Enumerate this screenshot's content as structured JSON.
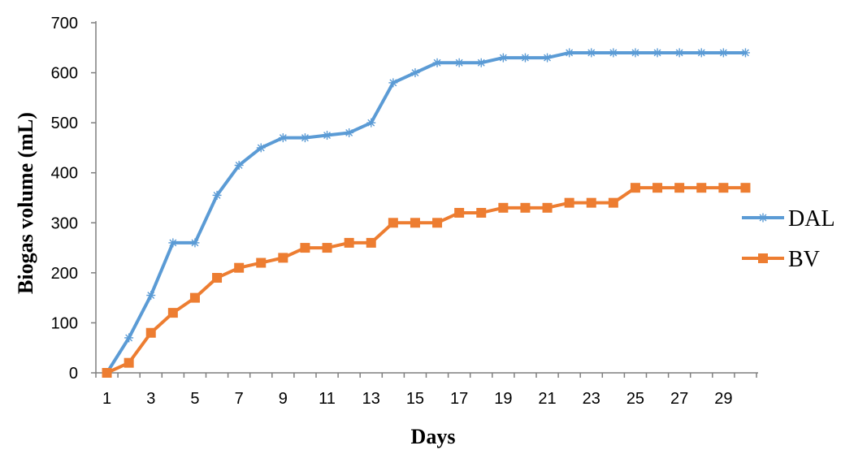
{
  "chart_data": {
    "type": "line",
    "title": "",
    "xlabel": "Days",
    "ylabel": "Biogas volume (mL)",
    "ylim": [
      0,
      700
    ],
    "yticks": [
      "0",
      "100",
      "200",
      "300",
      "400",
      "500",
      "600",
      "700"
    ],
    "xticks": [
      "1",
      "3",
      "5",
      "7",
      "9",
      "11",
      "13",
      "15",
      "17",
      "19",
      "21",
      "23",
      "25",
      "27",
      "29"
    ],
    "grid": false,
    "legend_position": "right",
    "x": [
      1,
      2,
      3,
      4,
      5,
      6,
      7,
      8,
      9,
      10,
      11,
      12,
      13,
      14,
      15,
      16,
      17,
      18,
      19,
      20,
      21,
      22,
      23,
      24,
      25,
      26,
      27,
      28,
      29,
      30
    ],
    "series": [
      {
        "name": "DAL",
        "color": "#5B9BD5",
        "marker": "asterisk",
        "values": [
          0,
          70,
          155,
          260,
          260,
          355,
          415,
          450,
          470,
          470,
          475,
          480,
          500,
          580,
          600,
          620,
          620,
          620,
          630,
          630,
          630,
          640,
          640,
          640,
          640,
          640,
          640,
          640,
          640,
          640
        ]
      },
      {
        "name": "BV",
        "color": "#ED7D31",
        "marker": "square",
        "values": [
          0,
          20,
          80,
          120,
          150,
          190,
          210,
          220,
          230,
          250,
          250,
          260,
          260,
          300,
          300,
          300,
          320,
          320,
          330,
          330,
          330,
          340,
          340,
          340,
          370,
          370,
          370,
          370,
          370,
          370
        ]
      }
    ]
  }
}
